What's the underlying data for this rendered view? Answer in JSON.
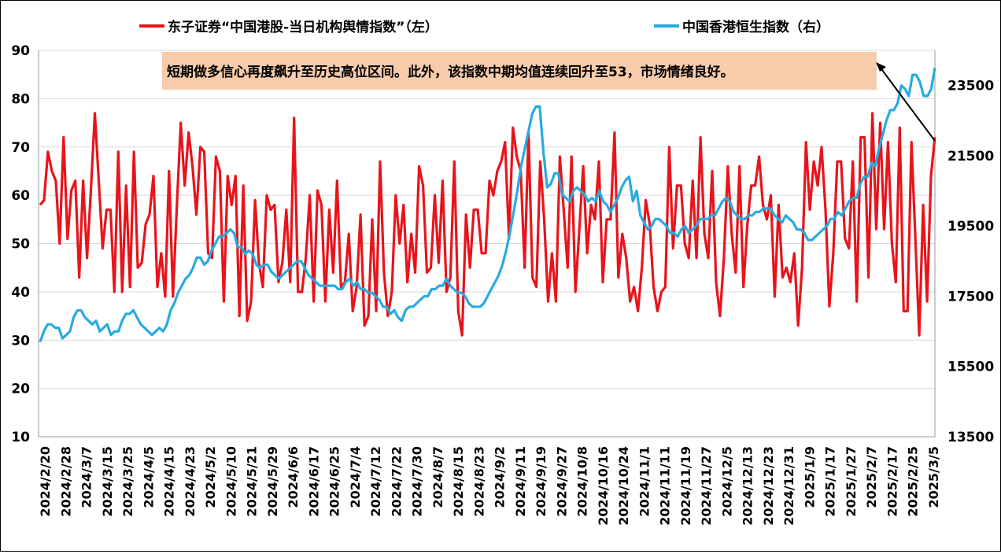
{
  "chart_data": {
    "type": "line",
    "legend": {
      "placement": "top",
      "entries": [
        {
          "label": "东子证券“中国港股-当日机构舆情指数”（左）",
          "color": "#e8141b"
        },
        {
          "label": "中国香港恒生指数（右）",
          "color": "#29aae1"
        }
      ]
    },
    "annotation": {
      "text": "短期做多信心再度飙升至历史高位区间。此外，该指数中期均值连续回升至53，市场情绪良好。",
      "background": "#f8ccab"
    },
    "y_left": {
      "ylim": [
        10,
        90
      ],
      "ticks": [
        "10",
        "20",
        "30",
        "40",
        "50",
        "60",
        "70",
        "80",
        "90"
      ]
    },
    "y_right": {
      "ylim": [
        13500,
        24500
      ],
      "ticks": [
        "13500",
        "15500",
        "17500",
        "19500",
        "21500",
        "23500"
      ]
    },
    "grid": "horizontal",
    "x_tick_labels": [
      "2024/2/20",
      "2024/2/28",
      "2024/3/7",
      "2024/3/15",
      "2024/3/25",
      "2024/4/5",
      "2024/4/15",
      "2024/4/23",
      "2024/5/2",
      "2024/5/10",
      "2024/5/21",
      "2024/5/29",
      "2024/6/6",
      "2024/6/17",
      "2024/6/25",
      "2024/7/4",
      "2024/7/12",
      "2024/7/22",
      "2024/7/30",
      "2024/8/7",
      "2024/8/15",
      "2024/8/23",
      "2024/9/2",
      "2024/9/11",
      "2024/9/19",
      "2024/9/27",
      "2024/10/8",
      "2024/10/16",
      "2024/10/24",
      "2024/11/1",
      "2024/11/11",
      "2024/11/19",
      "2024/11/27",
      "2024/12/5",
      "2024/12/13",
      "2024/12/23",
      "2024/12/31",
      "2025/1/9",
      "2025/1/17",
      "2025/1/27",
      "2025/2/7",
      "2025/2/17",
      "2025/2/25",
      "2025/3/5"
    ],
    "series": [
      {
        "name": "东子证券“中国港股-当日机构舆情指数”（左）",
        "axis": "left",
        "color": "#e8141b",
        "anchors": [
          58,
          59,
          69,
          65,
          63,
          50,
          72,
          51,
          61,
          63,
          43,
          63,
          47,
          61,
          77,
          63,
          49,
          57,
          57,
          40,
          69,
          40,
          62,
          41,
          69,
          45,
          46,
          54,
          56,
          64,
          41,
          48,
          39,
          65,
          39,
          58,
          75,
          62,
          73,
          66,
          56,
          70,
          69,
          48,
          47,
          68,
          65,
          38,
          64,
          58,
          64,
          35,
          62,
          34,
          38,
          59,
          46,
          41,
          60,
          57,
          58,
          42,
          46,
          57,
          42,
          76,
          40,
          40,
          47,
          60,
          38,
          61,
          58,
          38,
          57,
          44,
          63,
          41,
          42,
          52,
          36,
          41,
          56,
          33,
          35,
          55,
          36,
          67,
          44,
          35,
          40,
          60,
          50,
          58,
          42,
          52,
          44,
          66,
          62,
          44,
          45,
          60,
          46,
          63,
          40,
          43,
          67,
          36,
          31,
          56,
          45,
          57,
          57,
          48,
          48,
          63,
          60,
          65,
          67,
          71,
          51,
          74,
          68,
          65,
          45,
          73,
          43,
          41,
          67,
          55,
          38,
          48,
          38,
          68,
          57,
          45,
          68,
          40,
          53,
          66,
          48,
          58,
          55,
          67,
          42,
          55,
          55,
          73,
          43,
          52,
          47,
          38,
          41,
          36,
          45,
          59,
          54,
          41,
          36,
          40,
          41,
          70,
          49,
          62,
          62,
          50,
          47,
          63,
          47,
          72,
          52,
          47,
          65,
          42,
          35,
          47,
          66,
          52,
          44,
          66,
          41,
          54,
          62,
          62,
          68,
          58,
          55,
          60,
          39,
          58,
          43,
          45,
          42,
          48,
          33,
          45,
          71,
          57,
          67,
          62,
          70,
          57,
          37,
          48,
          67,
          67,
          51,
          49,
          67,
          38,
          72,
          72,
          43,
          77,
          53,
          75,
          53,
          71,
          50,
          42,
          74,
          36,
          36,
          71,
          51,
          31,
          58,
          38,
          64,
          72
        ]
      },
      {
        "name": "中国香港恒生指数（右）",
        "axis": "right",
        "color": "#29aae1",
        "anchors": [
          16200,
          16500,
          16700,
          16700,
          16600,
          16600,
          16300,
          16400,
          16500,
          16900,
          17100,
          17100,
          16900,
          16800,
          16700,
          16800,
          16500,
          16600,
          16700,
          16400,
          16500,
          16500,
          16800,
          17000,
          17000,
          17100,
          16900,
          16700,
          16600,
          16500,
          16400,
          16500,
          16600,
          16500,
          16700,
          17100,
          17300,
          17600,
          17800,
          18000,
          18100,
          18300,
          18600,
          18600,
          18400,
          18500,
          18800,
          19000,
          19200,
          19200,
          19300,
          19400,
          19300,
          18900,
          18900,
          18700,
          18800,
          18700,
          18400,
          18300,
          18400,
          18400,
          18200,
          18100,
          18000,
          18100,
          18200,
          18300,
          18400,
          18500,
          18500,
          18300,
          18100,
          18000,
          17900,
          17800,
          17800,
          17800,
          17800,
          17800,
          17700,
          17700,
          17900,
          18000,
          17800,
          17900,
          17700,
          17700,
          17600,
          17600,
          17500,
          17400,
          17200,
          17200,
          17000,
          17100,
          16900,
          16800,
          17100,
          17200,
          17200,
          17300,
          17400,
          17500,
          17500,
          17700,
          17700,
          17800,
          17800,
          18000,
          17800,
          17700,
          17600,
          17600,
          17500,
          17300,
          17200,
          17200,
          17200,
          17300,
          17500,
          17700,
          17900,
          18100,
          18400,
          18800,
          19300,
          19900,
          20500,
          21200,
          21700,
          22200,
          22700,
          22900,
          22900,
          21600,
          20600,
          20700,
          21000,
          21000,
          20400,
          20300,
          20200,
          20500,
          20600,
          20500,
          20400,
          20200,
          20300,
          20200,
          20500,
          20200,
          20100,
          19900,
          20100,
          20300,
          20600,
          20800,
          20900,
          20200,
          20500,
          19800,
          19600,
          19400,
          19500,
          19700,
          19700,
          19600,
          19500,
          19300,
          19300,
          19200,
          19400,
          19500,
          19300,
          19400,
          19500,
          19700,
          19700,
          19700,
          19800,
          19800,
          20000,
          20200,
          20300,
          20200,
          19900,
          19800,
          19700,
          19700,
          19800,
          19800,
          19900,
          19900,
          20000,
          20000,
          20000,
          19800,
          19700,
          19600,
          19800,
          19700,
          19600,
          19400,
          19400,
          19300,
          19100,
          19100,
          19200,
          19300,
          19400,
          19500,
          19700,
          19700,
          19900,
          19800,
          20000,
          20200,
          20300,
          20300,
          20700,
          20900,
          20900,
          21300,
          21200,
          21700,
          22100,
          22500,
          22800,
          22800,
          23000,
          23500,
          23400,
          23200,
          23800,
          23800,
          23600,
          23200,
          23200,
          23400,
          24000
        ]
      }
    ]
  }
}
